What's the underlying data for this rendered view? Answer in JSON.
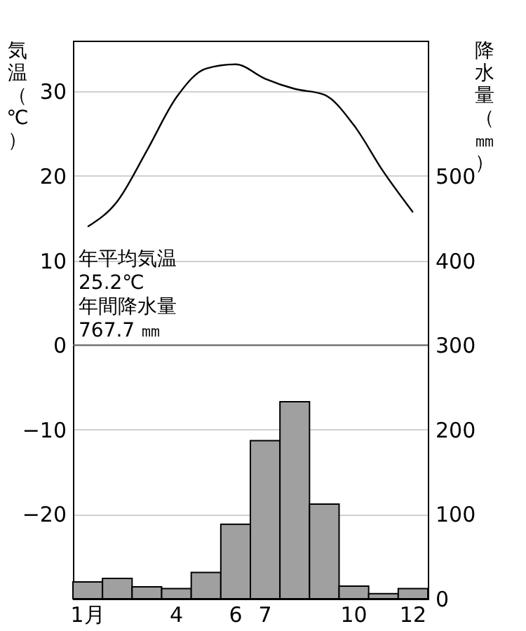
{
  "chart_data": {
    "type": "bar",
    "ylabel": "気温（℃）",
    "y2label": "降水量（㎜）",
    "categories": [
      "1月",
      null,
      null,
      "4",
      null,
      "6",
      "7",
      null,
      null,
      "10",
      null,
      "12"
    ],
    "series": [
      {
        "axis": "y2",
        "color": "#a0a0a0",
        "values": [
          20,
          24,
          14,
          12,
          31,
          88,
          187,
          233,
          112,
          15,
          6,
          12
        ]
      },
      {
        "type": "line",
        "color": "#000000",
        "values": [
          14.0,
          17.0,
          23.0,
          29.3,
          32.7,
          33.2,
          31.5,
          30.3,
          29.6,
          26.0,
          20.5,
          15.7
        ]
      }
    ],
    "ylim": [
      -30,
      36
    ],
    "yticks": [
      {
        "value": -20,
        "label": "−20"
      },
      {
        "value": -10,
        "label": "−10"
      },
      0,
      10,
      20,
      30
    ],
    "y2lim": [
      0,
      660
    ],
    "y2ticks": [
      0,
      100,
      200,
      300,
      400,
      500
    ],
    "grid": "y",
    "ref_lines": [
      {
        "axis": "y",
        "value": 0,
        "color": "#666666"
      }
    ],
    "annotations": [
      "年平均気温",
      "25.2℃",
      "年間降水量",
      "767.7 ㎜"
    ]
  }
}
